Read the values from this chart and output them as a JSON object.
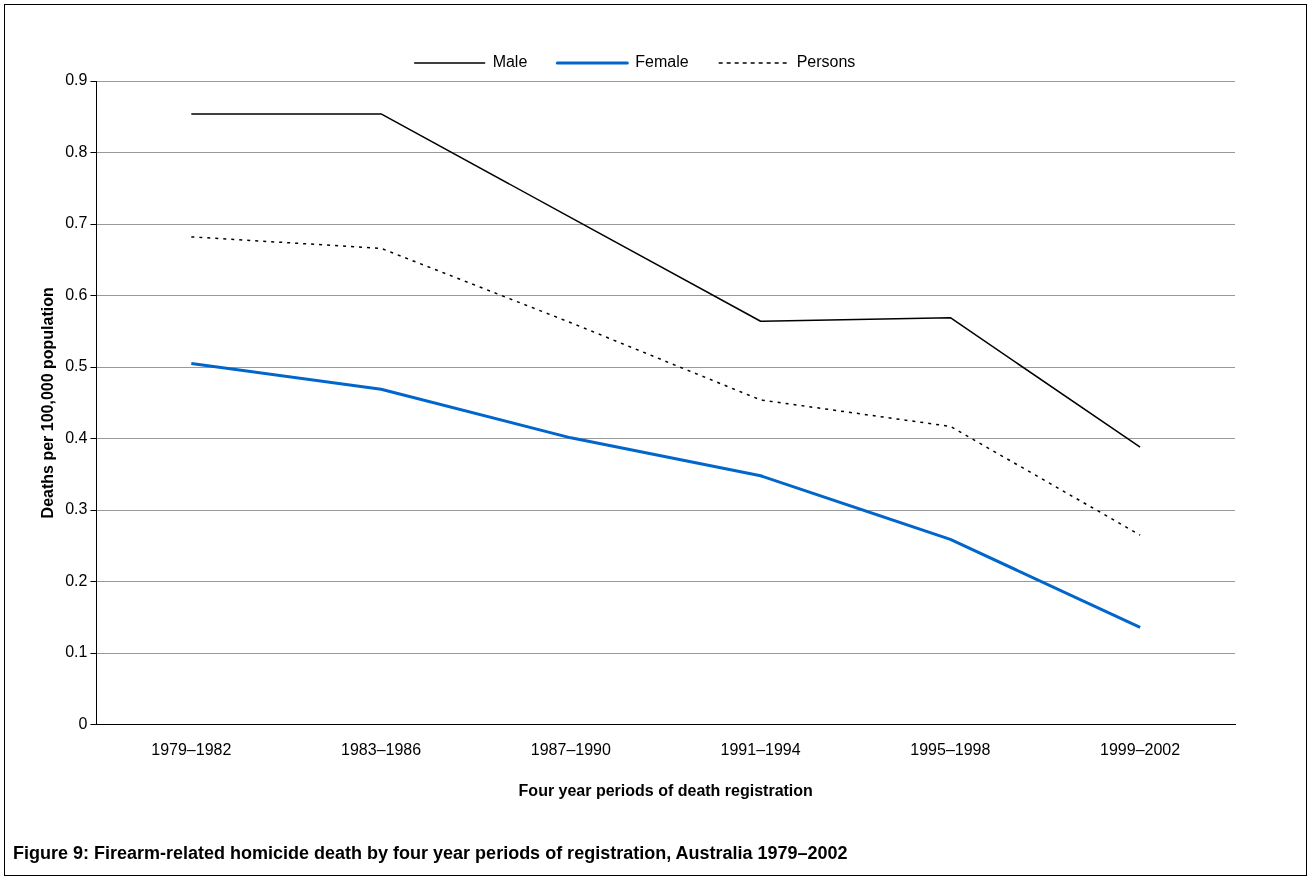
{
  "chart_data": {
    "type": "line",
    "title": "Figure 9: Firearm-related homicide death by four year periods of registration, Australia 1979–2002",
    "xlabel": "Four year periods of death registration",
    "ylabel": "Deaths per 100,000 population",
    "categories": [
      "1979–1982",
      "1983–1986",
      "1987–1990",
      "1991–1994",
      "1995–1998",
      "1999–2002"
    ],
    "series": [
      {
        "name": "Male",
        "color": "#000000",
        "line_style": "solid",
        "values": [
          0.854,
          0.854,
          0.709,
          0.564,
          0.569,
          0.388
        ]
      },
      {
        "name": "Female",
        "color": "#0066cc",
        "line_style": "solid",
        "values": [
          0.505,
          0.469,
          0.401,
          0.348,
          0.259,
          0.136
        ]
      },
      {
        "name": "Persons",
        "color": "#000000",
        "line_style": "dotted",
        "values": [
          0.682,
          0.666,
          0.562,
          0.454,
          0.417,
          0.265
        ]
      }
    ],
    "ylim": [
      0,
      0.9
    ],
    "yticks": [
      0,
      0.1,
      0.2,
      0.3,
      0.4,
      0.5,
      0.6,
      0.7,
      0.8,
      0.9
    ],
    "grid": "y",
    "legend": "top",
    "marker": "none"
  }
}
